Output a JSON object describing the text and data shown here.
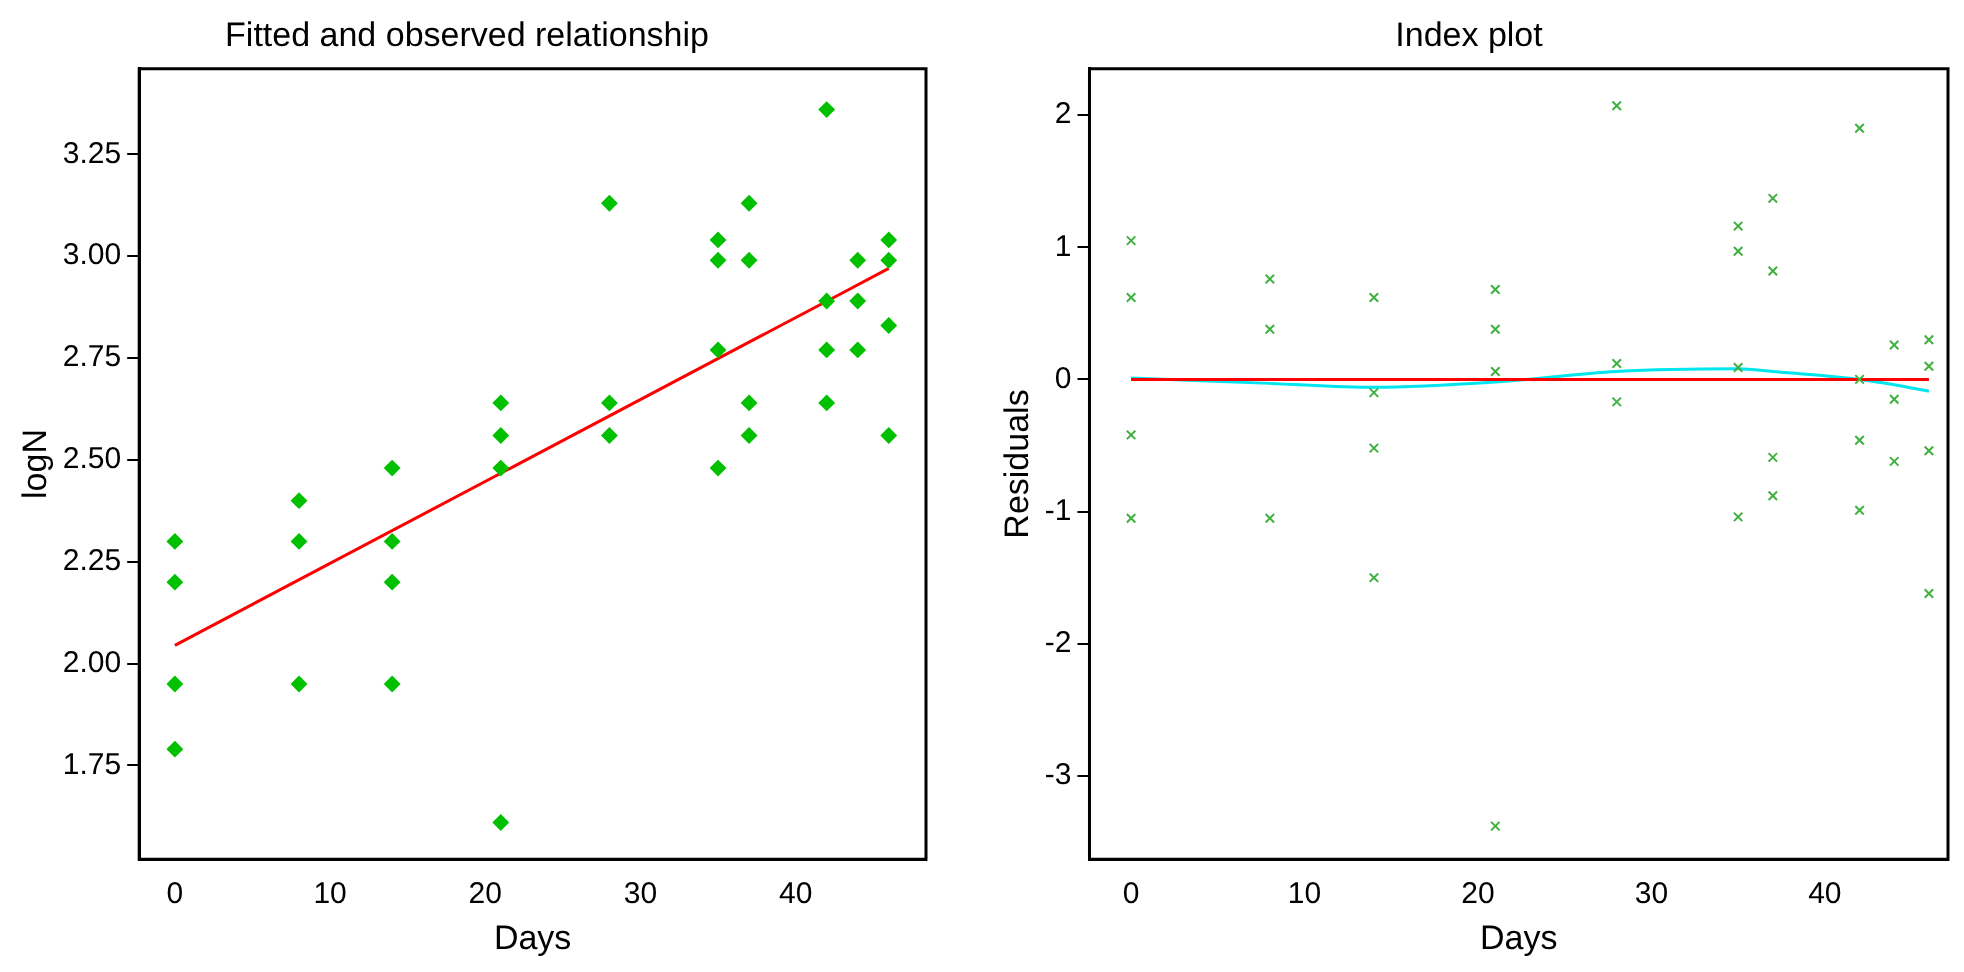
{
  "chart_data": [
    {
      "type": "scatter",
      "title": "Fitted and observed relationship",
      "xlabel": "Days",
      "ylabel": "logN",
      "xlim": [
        -2.3,
        48.4
      ],
      "xticks": [
        0,
        10,
        20,
        30,
        40
      ],
      "ylim": [
        1.52,
        3.46
      ],
      "yticks": [
        1.75,
        {
          "value": 2,
          "label": "2.00"
        },
        2.25,
        {
          "value": 2.5,
          "label": "2.50"
        },
        2.75,
        {
          "value": 3,
          "label": "3.00"
        },
        3.25
      ],
      "series": [
        {
          "type": "scatter",
          "color": "#00c000",
          "marker": "diamond",
          "x": [
            0,
            0,
            0,
            0,
            8,
            8,
            8,
            14,
            14,
            14,
            14,
            21,
            21,
            21,
            21,
            28,
            28,
            28,
            35,
            35,
            35,
            35,
            37,
            37,
            37,
            37,
            42,
            42,
            42,
            42,
            44,
            44,
            44,
            46,
            46,
            46,
            46
          ],
          "values": [
            2.3,
            2.2,
            1.95,
            1.79,
            2.4,
            2.3,
            1.95,
            2.48,
            2.3,
            2.2,
            1.95,
            2.64,
            2.56,
            2.48,
            1.61,
            3.13,
            2.64,
            2.56,
            3.04,
            2.99,
            2.77,
            2.48,
            3.13,
            2.99,
            2.64,
            2.56,
            3.36,
            2.89,
            2.77,
            2.64,
            2.99,
            2.89,
            2.77,
            3.04,
            2.99,
            2.83,
            2.56
          ]
        },
        {
          "type": "line",
          "color": "#ff0000",
          "marker": "none",
          "x": [
            0,
            46
          ],
          "values": [
            2.045,
            2.97
          ]
        }
      ]
    },
    {
      "type": "scatter",
      "title": "Index plot",
      "xlabel": "Days",
      "ylabel": "Residuals",
      "xlim": [
        -2.4,
        47.1
      ],
      "xticks": [
        0,
        10,
        20,
        30,
        40
      ],
      "ylim": [
        -3.63,
        2.35
      ],
      "yticks": [
        -3,
        -2,
        -1,
        0,
        1,
        2
      ],
      "series": [
        {
          "type": "scatter",
          "color": "#40b040",
          "marker": "cross",
          "x": [
            0,
            0,
            0,
            0,
            8,
            8,
            8,
            14,
            14,
            14,
            14,
            21,
            21,
            21,
            21,
            28,
            28,
            28,
            35,
            35,
            35,
            35,
            37,
            37,
            37,
            37,
            42,
            42,
            42,
            42,
            44,
            44,
            44,
            46,
            46,
            46,
            46
          ],
          "values": [
            1.05,
            0.62,
            -0.42,
            -1.05,
            0.76,
            0.38,
            -1.05,
            0.62,
            -0.1,
            -0.52,
            -1.5,
            0.68,
            0.38,
            0.06,
            -3.38,
            2.07,
            0.12,
            -0.17,
            1.16,
            0.97,
            0.09,
            -1.04,
            1.37,
            0.82,
            -0.59,
            -0.88,
            1.9,
            0.0,
            -0.46,
            -0.99,
            0.26,
            -0.15,
            -0.62,
            0.3,
            0.1,
            -0.54,
            -1.62
          ]
        },
        {
          "type": "line",
          "color": "#ff0000",
          "marker": "none",
          "x": [
            0,
            46
          ],
          "values": [
            0,
            0
          ]
        },
        {
          "type": "line",
          "color": "#00e5ee",
          "marker": "none",
          "x": [
            0,
            8,
            14,
            21,
            28,
            35,
            37,
            42,
            44,
            46
          ],
          "values": [
            0.01,
            -0.03,
            -0.06,
            -0.02,
            0.06,
            0.08,
            0.06,
            0.0,
            -0.04,
            -0.09
          ]
        }
      ]
    }
  ]
}
